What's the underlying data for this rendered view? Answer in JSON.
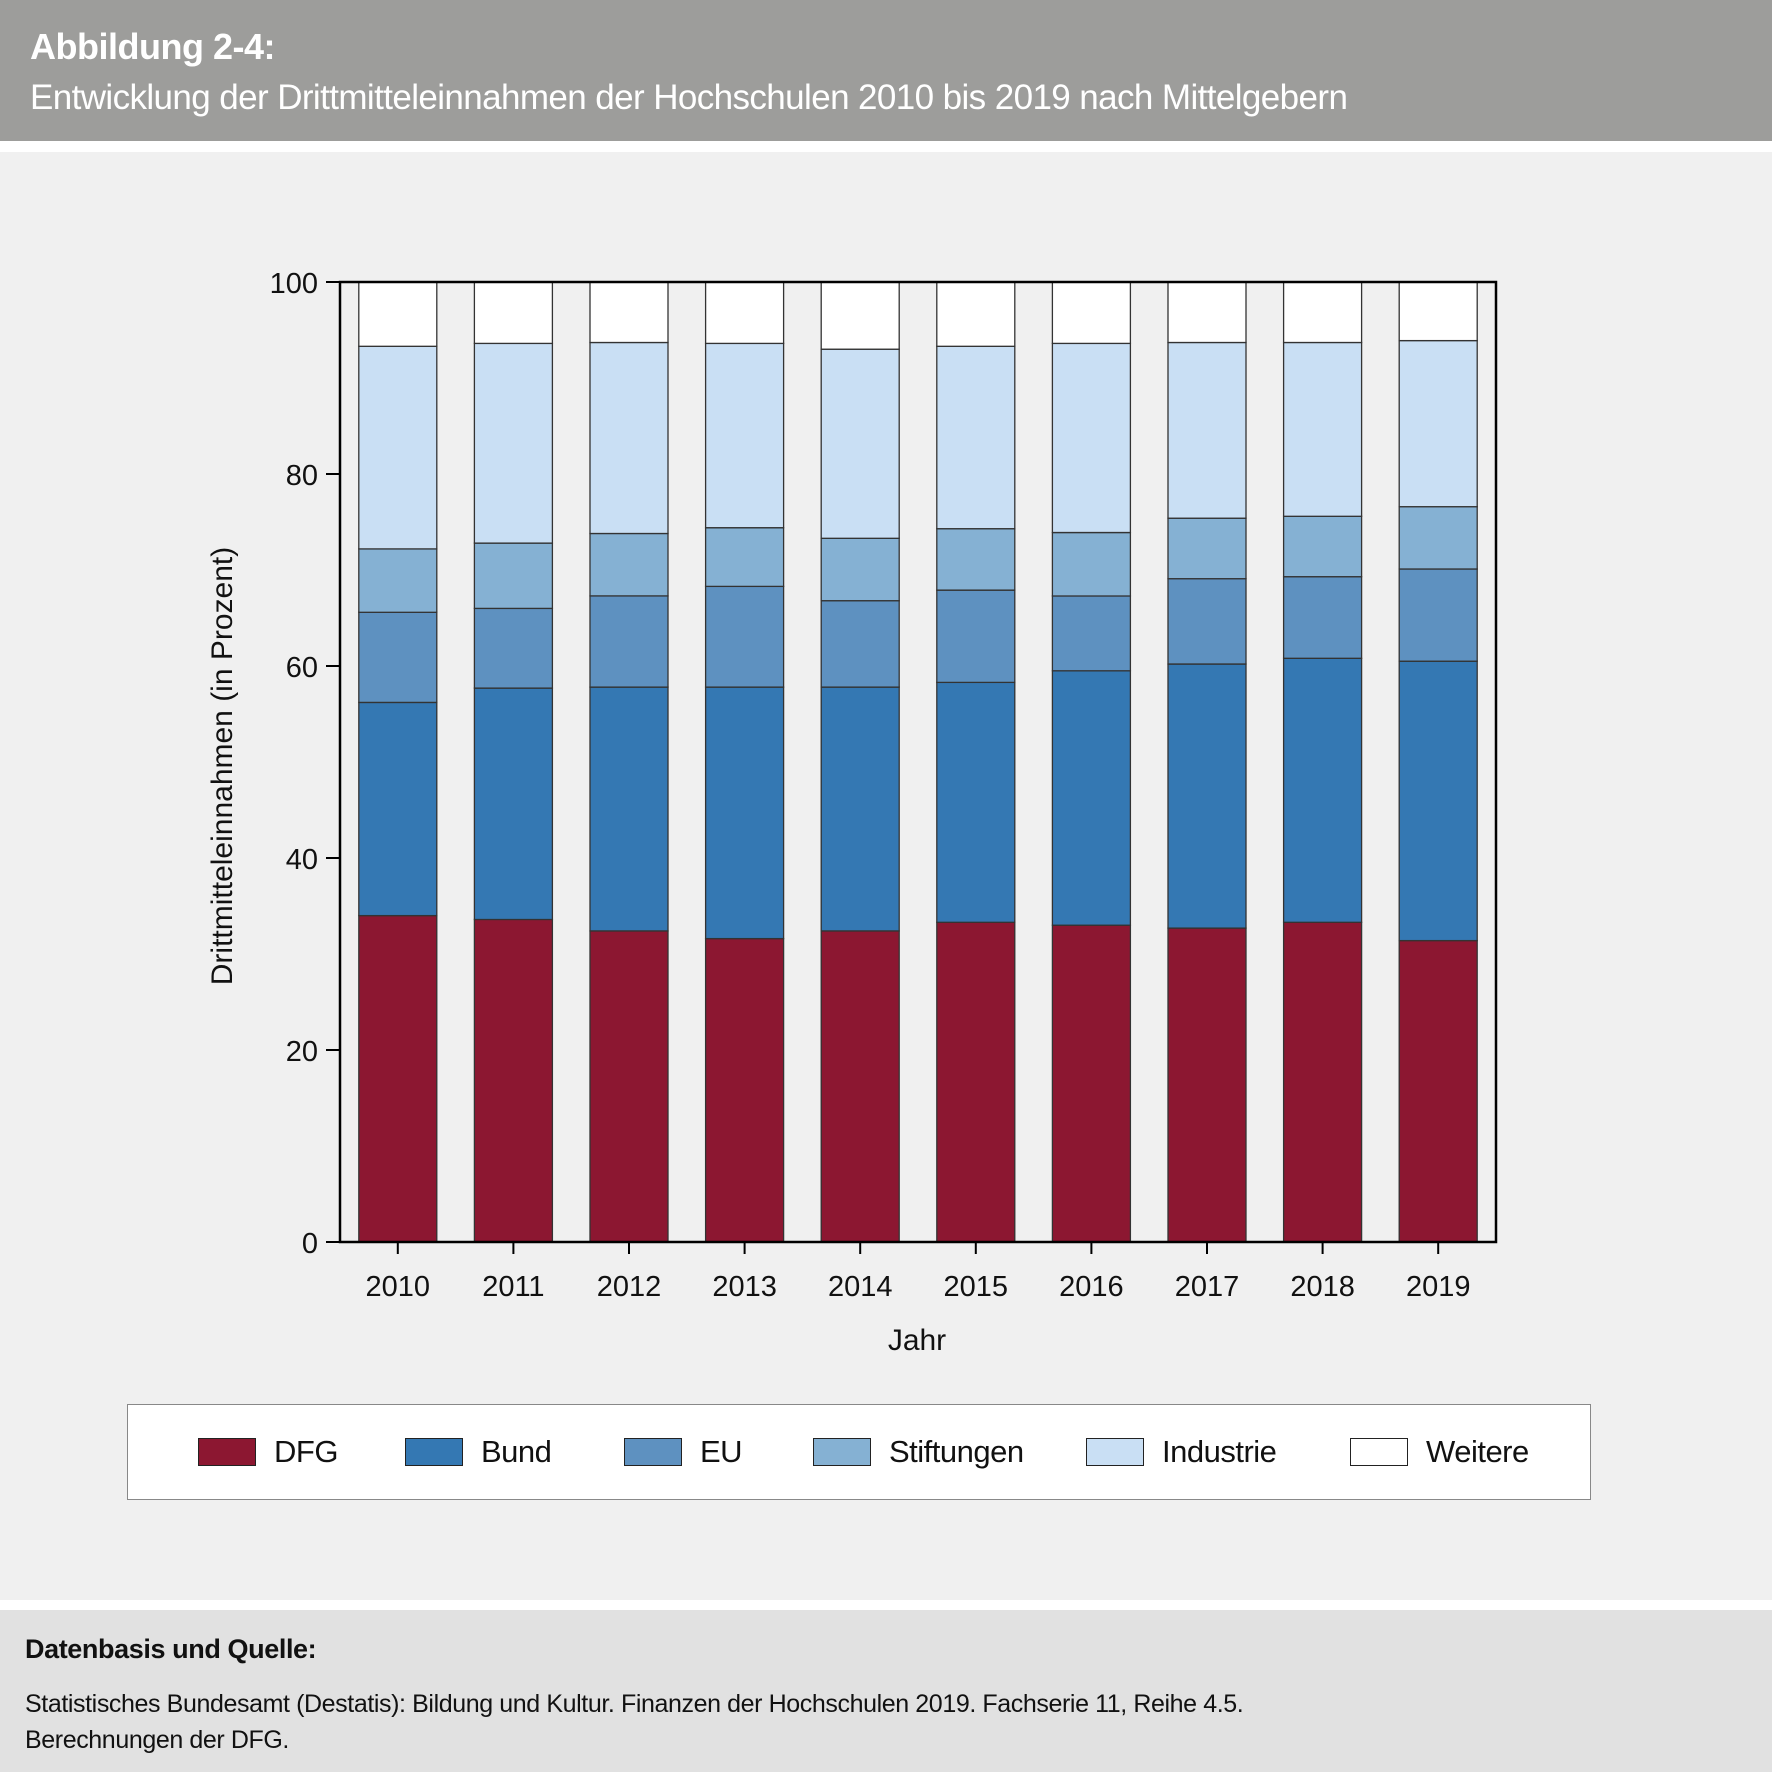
{
  "header": {
    "figure_label": "Abbildung 2-4:",
    "figure_title": "Entwicklung der Drittmitteleinnahmen der Hochschulen 2010 bis 2019 nach Mittelgebern"
  },
  "footer": {
    "heading": "Datenbasis und Quelle:",
    "line1": "Statistisches Bundesamt (Destatis): Bildung und Kultur. Finanzen der Hochschulen 2019. Fachserie 11, Reihe 4.5.",
    "line2": "Berechnungen der DFG."
  },
  "chart_data": {
    "type": "bar",
    "stacked": true,
    "title": "Entwicklung der Drittmitteleinnahmen der Hochschulen 2010 bis 2019 nach Mittelgebern",
    "xlabel": "Jahr",
    "ylabel": "Drittmitteleinnahmen (in Prozent)",
    "ylim": [
      0,
      100
    ],
    "yticks": [
      0,
      20,
      40,
      60,
      80,
      100
    ],
    "grid": false,
    "legend_position": "bottom",
    "categories": [
      "2010",
      "2011",
      "2012",
      "2013",
      "2014",
      "2015",
      "2016",
      "2017",
      "2018",
      "2019"
    ],
    "series": [
      {
        "name": "DFG",
        "color": "#8c1731",
        "values": [
          34.0,
          33.6,
          32.4,
          31.6,
          32.4,
          33.3,
          33.0,
          32.7,
          33.3,
          31.4
        ]
      },
      {
        "name": "Bund",
        "color": "#3478b3",
        "values": [
          22.2,
          24.1,
          25.4,
          26.2,
          25.4,
          25.0,
          26.5,
          27.5,
          27.5,
          29.1
        ]
      },
      {
        "name": "EU",
        "color": "#5e91c0",
        "values": [
          9.4,
          8.3,
          9.5,
          10.5,
          9.0,
          9.6,
          7.8,
          8.9,
          8.5,
          9.6
        ]
      },
      {
        "name": "Stiftungen",
        "color": "#85b1d3",
        "values": [
          6.6,
          6.8,
          6.5,
          6.1,
          6.5,
          6.4,
          6.6,
          6.3,
          6.3,
          6.5
        ]
      },
      {
        "name": "Industrie",
        "color": "#c9dff4",
        "values": [
          21.1,
          20.8,
          19.9,
          19.2,
          19.7,
          19.0,
          19.7,
          18.3,
          18.1,
          17.3
        ]
      },
      {
        "name": "Weitere",
        "color": "#ffffff",
        "values": [
          6.7,
          6.4,
          6.3,
          6.4,
          7.0,
          6.7,
          6.4,
          6.3,
          6.3,
          6.1
        ]
      }
    ]
  }
}
